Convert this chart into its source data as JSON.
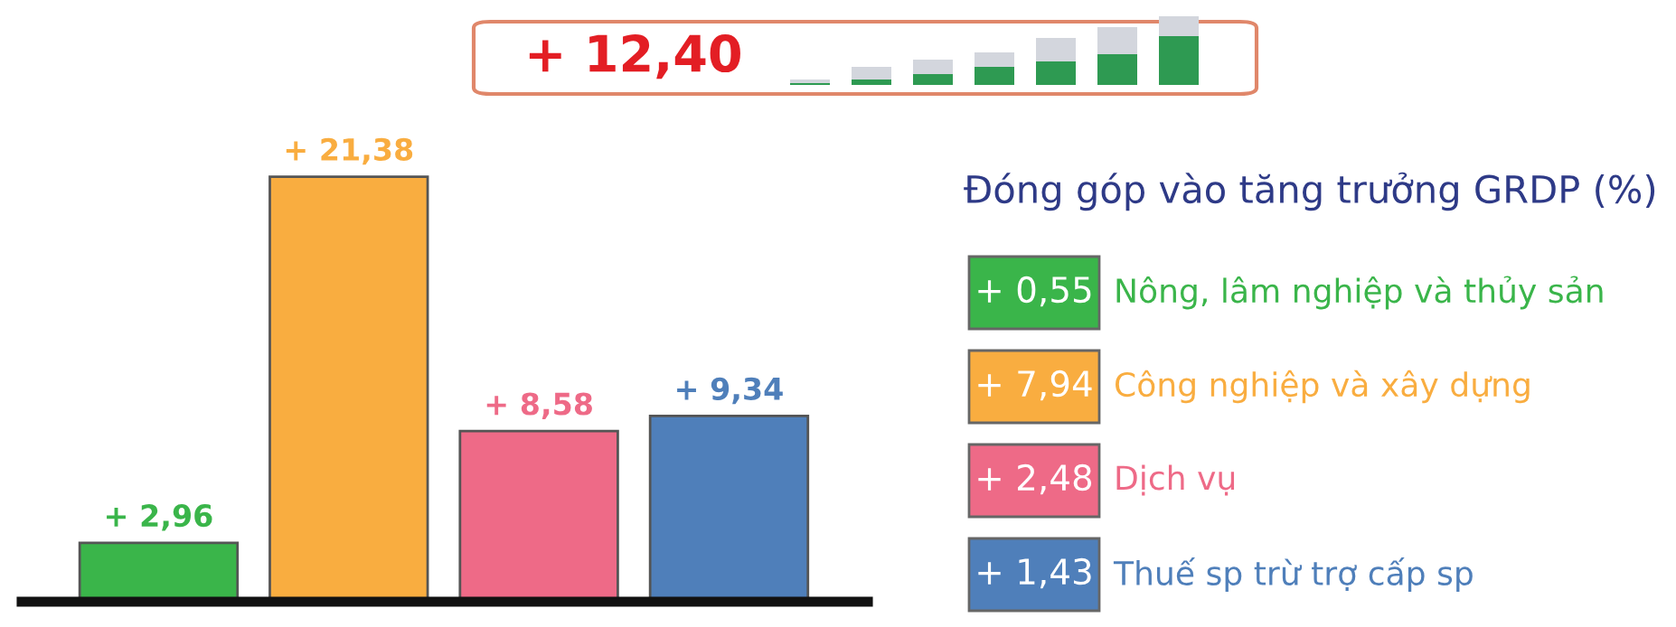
{
  "chart_data": [
    {
      "type": "bar",
      "title": "+ 12,40",
      "categories": [
        null,
        null,
        null,
        null
      ],
      "values": [
        2.96,
        21.38,
        8.58,
        9.34
      ],
      "colors": [
        "#3ab54a",
        "#f9ad40",
        "#ee6a87",
        "#4f7fba"
      ],
      "value_labels": [
        "+ 2,96",
        "+ 21,38",
        "+ 8,58",
        "+ 9,34"
      ]
    },
    {
      "type": "other",
      "title": "Đóng góp vào tăng trưởng GRDP (%)",
      "categories": [
        "Nông, lâm nghiệp và thủy sản",
        "Công nghiệp và xây dựng",
        "Dịch vụ",
        "Thuế sp trừ trợ cấp sp"
      ],
      "values": [
        0.55,
        7.94,
        2.48,
        1.43
      ],
      "colors": [
        "#3ab54a",
        "#f9ad40",
        "#ee6a87",
        "#4f7fba"
      ],
      "value_labels": [
        "+ 0,55",
        "+ 7,94",
        "+ 2,48",
        "+ 1,43"
      ]
    }
  ]
}
